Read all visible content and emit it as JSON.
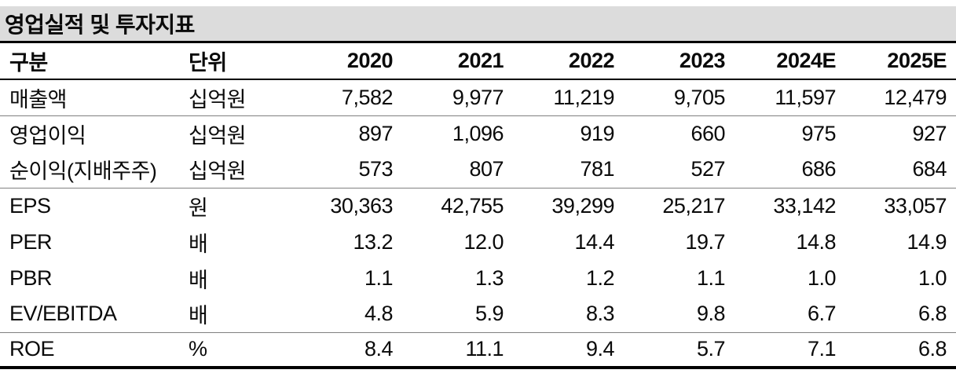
{
  "page": {
    "title": "영업실적 및 투자지표"
  },
  "table": {
    "columns": [
      "구분",
      "단위",
      "2020",
      "2021",
      "2022",
      "2023",
      "2024E",
      "2025E"
    ],
    "rows": [
      {
        "label": "매출액",
        "unit": "십억원",
        "values": [
          "7,582",
          "9,977",
          "11,219",
          "9,705",
          "11,597",
          "12,479"
        ]
      },
      {
        "label": "영업이익",
        "unit": "십억원",
        "values": [
          "897",
          "1,096",
          "919",
          "660",
          "975",
          "927"
        ]
      },
      {
        "label": "순이익(지배주주)",
        "unit": "십억원",
        "values": [
          "573",
          "807",
          "781",
          "527",
          "686",
          "684"
        ]
      },
      {
        "label": "EPS",
        "unit": "원",
        "values": [
          "30,363",
          "42,755",
          "39,299",
          "25,217",
          "33,142",
          "33,057"
        ]
      },
      {
        "label": "PER",
        "unit": "배",
        "values": [
          "13.2",
          "12.0",
          "14.4",
          "19.7",
          "14.8",
          "14.9"
        ]
      },
      {
        "label": "PBR",
        "unit": "배",
        "values": [
          "1.1",
          "1.3",
          "1.2",
          "1.1",
          "1.0",
          "1.0"
        ]
      },
      {
        "label": "EV/EBITDA",
        "unit": "배",
        "values": [
          "4.8",
          "5.9",
          "8.3",
          "9.8",
          "6.7",
          "6.8"
        ]
      },
      {
        "label": "ROE",
        "unit": "%",
        "values": [
          "8.4",
          "11.1",
          "9.4",
          "5.7",
          "7.1",
          "6.8"
        ]
      }
    ]
  },
  "colors": {
    "title_band_bg": "#dcdcdc",
    "heavy_rule": "#000000",
    "light_rule": "#808080",
    "text": "#0a0a0a"
  }
}
